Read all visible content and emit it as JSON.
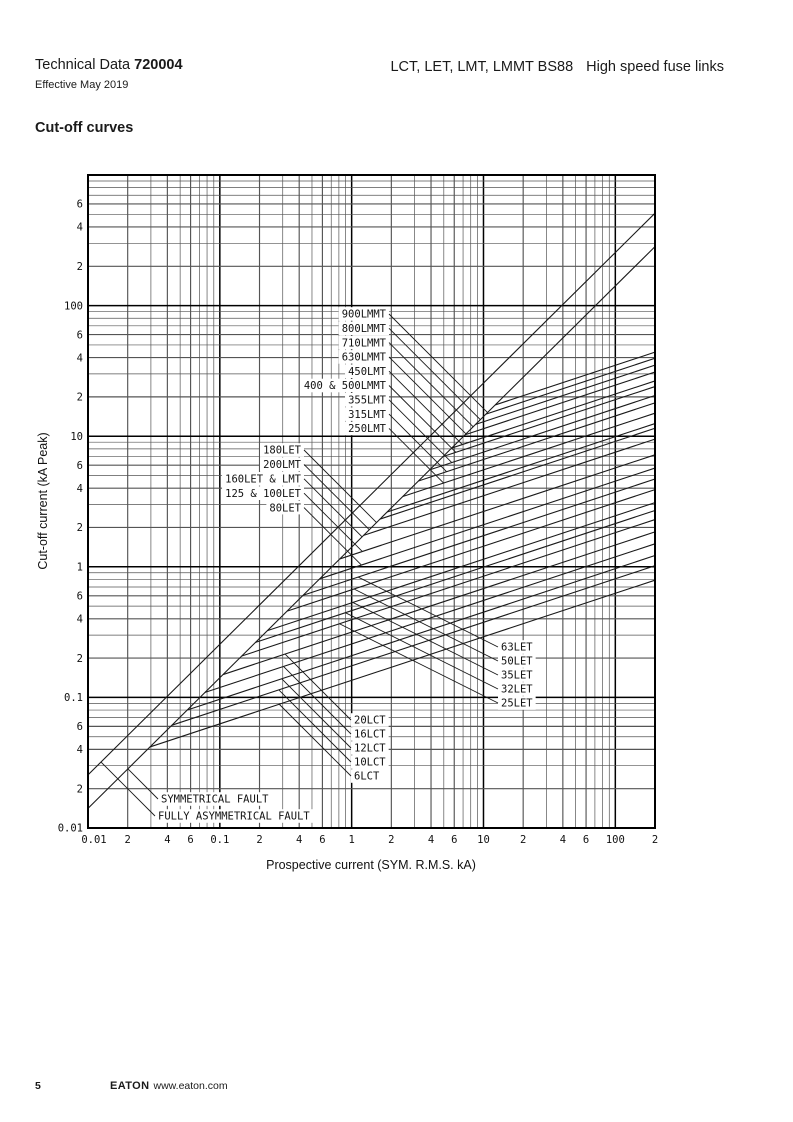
{
  "header": {
    "doc_type": "Technical Data",
    "doc_number": "720004",
    "effective": "Effective May 2019",
    "product_line": "LCT, LET, LMT, LMMT BS88",
    "subtitle": "High speed fuse links"
  },
  "section_title": "Cut-off curves",
  "footer": {
    "page_number": "5",
    "brand": "EATON",
    "brand_url": "www.eaton.com"
  },
  "chart_data": {
    "type": "line",
    "title": "Cut-off curves",
    "xlabel": "Prospective current (SYM. R.M.S. kA)",
    "ylabel": "Cut-off current (kA Peak)",
    "x_scale": "log",
    "y_scale": "log",
    "x_range": [
      0.01,
      200
    ],
    "y_range": [
      0.01,
      1000
    ],
    "grid": "full log-log grid, decades heavy, 2/4/6 emphasized",
    "x_tick_labels": [
      {
        "v": 0.01,
        "t": "0.01"
      },
      {
        "v": 0.02,
        "t": "2"
      },
      {
        "v": 0.04,
        "t": "4"
      },
      {
        "v": 0.06,
        "t": "6"
      },
      {
        "v": 0.1,
        "t": "0.1"
      },
      {
        "v": 0.2,
        "t": "2"
      },
      {
        "v": 0.4,
        "t": "4"
      },
      {
        "v": 0.6,
        "t": "6"
      },
      {
        "v": 1,
        "t": "1"
      },
      {
        "v": 2,
        "t": "2"
      },
      {
        "v": 4,
        "t": "4"
      },
      {
        "v": 6,
        "t": "6"
      },
      {
        "v": 10,
        "t": "10"
      },
      {
        "v": 20,
        "t": "2"
      },
      {
        "v": 40,
        "t": "4"
      },
      {
        "v": 60,
        "t": "6"
      },
      {
        "v": 100,
        "t": "100"
      },
      {
        "v": 200,
        "t": "2"
      }
    ],
    "y_tick_labels": [
      {
        "v": 600,
        "t": "6"
      },
      {
        "v": 400,
        "t": "4"
      },
      {
        "v": 200,
        "t": "2"
      },
      {
        "v": 100,
        "t": "100"
      },
      {
        "v": 60,
        "t": "6"
      },
      {
        "v": 40,
        "t": "4"
      },
      {
        "v": 20,
        "t": "2"
      },
      {
        "v": 10,
        "t": "10"
      },
      {
        "v": 6,
        "t": "6"
      },
      {
        "v": 4,
        "t": "4"
      },
      {
        "v": 2,
        "t": "2"
      },
      {
        "v": 1,
        "t": "1"
      },
      {
        "v": 0.6,
        "t": "6"
      },
      {
        "v": 0.4,
        "t": "4"
      },
      {
        "v": 0.2,
        "t": "2"
      },
      {
        "v": 0.1,
        "t": "0.1"
      },
      {
        "v": 0.06,
        "t": "6"
      },
      {
        "v": 0.04,
        "t": "4"
      },
      {
        "v": 0.02,
        "t": "2"
      },
      {
        "v": 0.01,
        "t": "0.01"
      }
    ],
    "reference_lines": [
      {
        "label": "SYMMETRICAL FAULT",
        "peak_factor": 1.414
      },
      {
        "label": "FULLY ASYMMETRICAL FAULT",
        "peak_factor": 2.55
      }
    ],
    "curve_model": {
      "description": "Each fuse-link cut-off curve leaves the symmetrical fault line at its threshold and rises with slope 1/3 (log-log) up to 200 kA prospective",
      "slope": 0.3333,
      "branch_line_factor": 1.414
    },
    "curves": [
      {
        "label": "900LMMT",
        "cutoff_at_200kA": 44,
        "group": 1
      },
      {
        "label": "800LMMT",
        "cutoff_at_200kA": 39.5,
        "group": 1
      },
      {
        "label": "710LMMT",
        "cutoff_at_200kA": 35,
        "group": 1
      },
      {
        "label": "630LMMT",
        "cutoff_at_200kA": 31,
        "group": 1
      },
      {
        "label": "450LMT",
        "cutoff_at_200kA": 26.5,
        "group": 1
      },
      {
        "label": "400 & 500LMMT",
        "cutoff_at_200kA": 24,
        "group": 1
      },
      {
        "label": "355LMT",
        "cutoff_at_200kA": 20.5,
        "group": 1
      },
      {
        "label": "315LMT",
        "cutoff_at_200kA": 18,
        "group": 1
      },
      {
        "label": "250LMT",
        "cutoff_at_200kA": 15,
        "group": 1
      },
      {
        "label": "180LET",
        "cutoff_at_200kA": 12.5,
        "group": 2
      },
      {
        "label": "200LMT",
        "cutoff_at_200kA": 11.5,
        "group": 2
      },
      {
        "label": "160LET & LMT",
        "cutoff_at_200kA": 9.5,
        "group": 2
      },
      {
        "label": "125 & 100LET",
        "cutoff_at_200kA": 7.2,
        "group": 2
      },
      {
        "label": "80LET",
        "cutoff_at_200kA": 5.7,
        "group": 2
      },
      {
        "label": "63LET",
        "cutoff_at_200kA": 4.7,
        "group": 3
      },
      {
        "label": "50LET",
        "cutoff_at_200kA": 3.9,
        "group": 3
      },
      {
        "label": "35LET",
        "cutoff_at_200kA": 3.1,
        "group": 3
      },
      {
        "label": "32LET",
        "cutoff_at_200kA": 2.7,
        "group": 3
      },
      {
        "label": "25LET",
        "cutoff_at_200kA": 2.3,
        "group": 3
      },
      {
        "label": "20LCT",
        "cutoff_at_200kA": 1.85,
        "group": 4
      },
      {
        "label": "16LCT",
        "cutoff_at_200kA": 1.5,
        "group": 4
      },
      {
        "label": "12LCT",
        "cutoff_at_200kA": 1.22,
        "group": 4
      },
      {
        "label": "10LCT",
        "cutoff_at_200kA": 1.02,
        "group": 4
      },
      {
        "label": "6LCT",
        "cutoff_at_200kA": 0.79,
        "group": 4
      }
    ]
  }
}
